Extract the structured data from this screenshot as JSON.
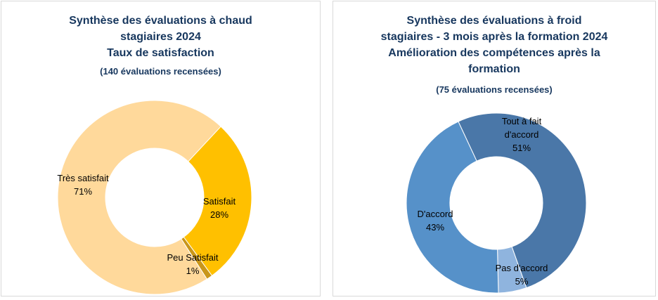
{
  "chart_data": [
    {
      "type": "pie",
      "title_lines": [
        "Synthèse des évaluations à chaud",
        "stagiaires 2024",
        "Taux de satisfaction"
      ],
      "subtitle": "(140 évaluations recensées)",
      "slices": [
        {
          "label": "Satisfait",
          "percent_label": "28%",
          "value": 28,
          "color": "#ffc000"
        },
        {
          "label": "Peu Satisfait",
          "percent_label": "1%",
          "value": 1,
          "color": "#c9961a"
        },
        {
          "label": "Très satisfait",
          "percent_label": "71%",
          "value": 71,
          "color": "#ffd99b"
        }
      ]
    },
    {
      "type": "pie",
      "title_lines": [
        "Synthèse des évaluations à froid",
        "stagiaires - 3 mois après la formation 2024",
        "Amélioration des compétences après la",
        "formation"
      ],
      "subtitle": "(75 évaluations recensées)",
      "slices": [
        {
          "label_lines": [
            "Tout à fait",
            "d'accord"
          ],
          "percent_label": "51%",
          "value": 51,
          "color": "#4a77a8"
        },
        {
          "label_lines": [
            "Pas d'accord"
          ],
          "percent_label": "5%",
          "value": 5,
          "color": "#8fb4de"
        },
        {
          "label_lines": [
            "D'accord"
          ],
          "percent_label": "43%",
          "value": 43,
          "color": "#5691c9"
        }
      ]
    }
  ]
}
